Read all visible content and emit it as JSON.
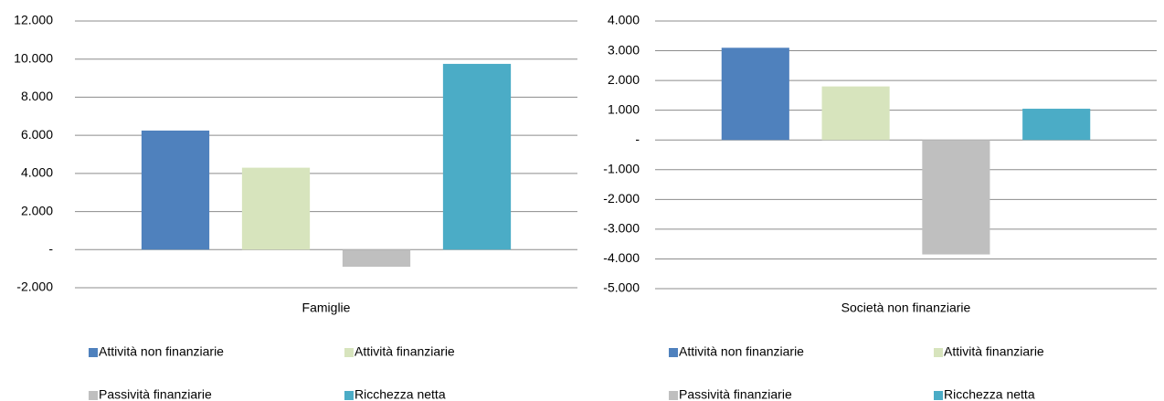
{
  "chart_data": [
    {
      "type": "bar",
      "categories": [
        "Famiglie"
      ],
      "series": [
        {
          "name": "Attività non finanziarie",
          "color": "#4f81bd",
          "values": [
            6250
          ]
        },
        {
          "name": "Attività finanziarie",
          "color": "#d7e4bd",
          "values": [
            4300
          ]
        },
        {
          "name": "Passività finanziarie",
          "color": "#bfbfbf",
          "values": [
            -900
          ]
        },
        {
          "name": "Ricchezza netta",
          "color": "#4bacc6",
          "values": [
            9750
          ]
        }
      ],
      "ylim": [
        -2000,
        12000
      ],
      "yticks": [
        {
          "value": -2000,
          "label": "-2.000"
        },
        {
          "value": 0,
          "label": "-"
        },
        {
          "value": 2000,
          "label": "2.000"
        },
        {
          "value": 4000,
          "label": "4.000"
        },
        {
          "value": 6000,
          "label": "6.000"
        },
        {
          "value": 8000,
          "label": "8.000"
        },
        {
          "value": 10000,
          "label": "10.000"
        },
        {
          "value": 12000,
          "label": "12.000"
        }
      ],
      "grid": true
    },
    {
      "type": "bar",
      "categories": [
        "Società non finanziarie"
      ],
      "series": [
        {
          "name": "Attività non finanziarie",
          "color": "#4f81bd",
          "values": [
            3100
          ]
        },
        {
          "name": "Attività finanziarie",
          "color": "#d7e4bd",
          "values": [
            1800
          ]
        },
        {
          "name": "Passività finanziarie",
          "color": "#bfbfbf",
          "values": [
            -3850
          ]
        },
        {
          "name": "Ricchezza netta",
          "color": "#4bacc6",
          "values": [
            1050
          ]
        }
      ],
      "ylim": [
        -5000,
        4000
      ],
      "yticks": [
        {
          "value": -5000,
          "label": "-5.000"
        },
        {
          "value": -4000,
          "label": "-4.000"
        },
        {
          "value": -3000,
          "label": "-3.000"
        },
        {
          "value": -2000,
          "label": "-2.000"
        },
        {
          "value": -1000,
          "label": "-1.000"
        },
        {
          "value": 0,
          "label": "-"
        },
        {
          "value": 1000,
          "label": "1.000"
        },
        {
          "value": 2000,
          "label": "2.000"
        },
        {
          "value": 3000,
          "label": "3.000"
        },
        {
          "value": 4000,
          "label": "4.000"
        }
      ],
      "grid": true
    }
  ]
}
